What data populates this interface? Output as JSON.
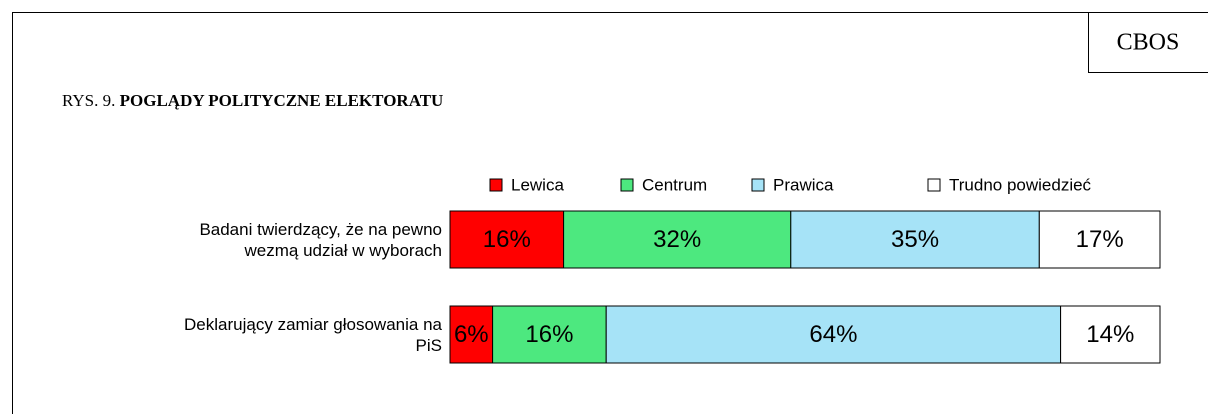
{
  "chart_data": {
    "type": "stacked-bar-horizontal",
    "badge": "CBOS",
    "figure_label": "RYS. 9.",
    "title": "POGLĄDY POLITYCZNE ELEKTORATU",
    "categories": [
      "Badani twierdzący, że na pewno wezmą udział w wyborach",
      "Deklarujący zamiar  głosowania na PiS"
    ],
    "xlim": [
      0,
      100
    ],
    "series": [
      {
        "name": "Lewica",
        "color": "#ff0000",
        "values": [
          16,
          6
        ],
        "value_labels": [
          "16%",
          "6%"
        ]
      },
      {
        "name": "Centrum",
        "color": "#4de87f",
        "values": [
          32,
          16
        ],
        "value_labels": [
          "32%",
          "16%"
        ]
      },
      {
        "name": "Prawica",
        "color": "#a6e3f7",
        "values": [
          35,
          64
        ],
        "value_labels": [
          "35%",
          "64%"
        ]
      },
      {
        "name": "Trudno powiedzieć",
        "color": "#ffffff",
        "values": [
          17,
          14
        ],
        "value_labels": [
          "17%",
          "14%"
        ]
      }
    ]
  }
}
